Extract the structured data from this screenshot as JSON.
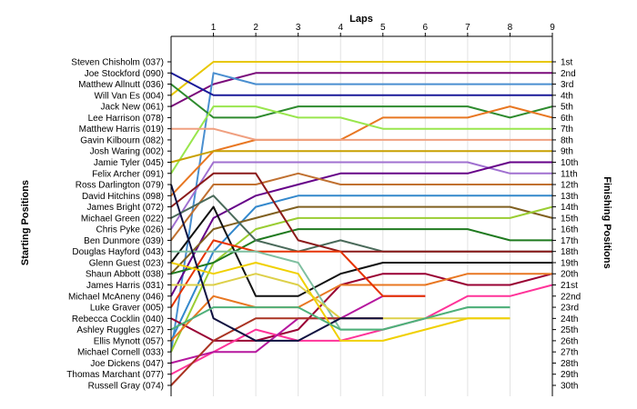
{
  "chart_data": {
    "type": "line",
    "title": "",
    "xlabel": "Laps",
    "ylabel_left": "Starting Positions",
    "ylabel_right": "Finishing Positions",
    "x": [
      0,
      1,
      2,
      3,
      4,
      5,
      6,
      7,
      8,
      9
    ],
    "x_tick_labels": [
      "1",
      "2",
      "3",
      "4",
      "5",
      "6",
      "7",
      "8",
      "9"
    ],
    "xlim": [
      0,
      9
    ],
    "ylim": [
      1,
      30
    ],
    "y_inverted": true,
    "grid": "vertical",
    "starting_labels": [
      "Steven Chisholm (037)",
      "Joe Stockford (090)",
      "Matthew Allnutt (036)",
      "Will Van Es (004)",
      "Jack New (061)",
      "Lee Harrison (078)",
      "Matthew Harris (019)",
      "Gavin Kilbourn (082)",
      "Josh Waring (002)",
      "Jamie Tyler (045)",
      "Felix Archer (091)",
      "Ross Darlington (079)",
      "David Hitchins (098)",
      "James Bright (072)",
      "Michael Green (022)",
      "Chris Pyke (026)",
      "Ben Dunmore (039)",
      "Douglas Hayford (043)",
      "Glenn Guest (023)",
      "Shaun Abbott (038)",
      "James Harris (031)",
      "Michael McAneny (046)",
      "Luke Graver (005)",
      "Rebecca Cocklin (040)",
      "Ashley Ruggles (027)",
      "Ellis Mynott (057)",
      "Michael Cornell (033)",
      "Joe Dickens (047)",
      "Thomas Marchant (077)",
      "Russell Gray (074)"
    ],
    "finishing_labels": [
      "1st",
      "2nd",
      "3rd",
      "4th",
      "5th",
      "6th",
      "7th",
      "8th",
      "9th",
      "10th",
      "11th",
      "12th",
      "13th",
      "14th",
      "15th",
      "16th",
      "17th",
      "18th",
      "19th",
      "20th",
      "21st",
      "22nd",
      "23rd",
      "24th",
      "25th",
      "26th",
      "27th",
      "28th",
      "29th",
      "30th"
    ],
    "series": [
      {
        "color": "#e8c700",
        "values": [
          4,
          1,
          1,
          1,
          1,
          1,
          1,
          1,
          1,
          1
        ]
      },
      {
        "color": "#7a0a7a",
        "values": [
          5,
          3,
          2,
          2,
          2,
          2,
          2,
          2,
          2,
          2
        ]
      },
      {
        "color": "#4a8fd0",
        "values": [
          27,
          2,
          3,
          3,
          3,
          3,
          3,
          3,
          3,
          3
        ]
      },
      {
        "color": "#1a1a99",
        "values": [
          2,
          4,
          4,
          4,
          4,
          4,
          4,
          4,
          4,
          4
        ]
      },
      {
        "color": "#2e8b2e",
        "values": [
          3,
          6,
          6,
          5,
          5,
          5,
          5,
          5,
          6,
          5
        ]
      },
      {
        "color": "#e87722",
        "values": [
          13,
          9,
          8,
          8,
          8,
          6,
          6,
          6,
          5,
          6
        ]
      },
      {
        "color": "#99e64d",
        "values": [
          11,
          5,
          5,
          6,
          6,
          7,
          7,
          7,
          7,
          7
        ]
      },
      {
        "color": "#f0a080",
        "values": [
          7,
          7,
          8,
          8,
          8,
          8,
          8,
          8,
          8,
          8
        ]
      },
      {
        "color": "#c8a000",
        "values": [
          10,
          9,
          9,
          9,
          9,
          9,
          9,
          9,
          9,
          9
        ]
      },
      {
        "color": "#a070d0",
        "values": [
          16,
          10,
          10,
          10,
          10,
          10,
          10,
          10,
          11,
          11
        ]
      },
      {
        "color": "#660088",
        "values": [
          22,
          15,
          13,
          12,
          11,
          11,
          11,
          11,
          10,
          10
        ]
      },
      {
        "color": "#c07030",
        "values": [
          17,
          12,
          12,
          11,
          12,
          12,
          12,
          12,
          12,
          12
        ]
      },
      {
        "color": "#3388cc",
        "values": [
          26,
          18,
          14,
          13,
          13,
          13,
          13,
          13,
          13,
          13
        ]
      },
      {
        "color": "#806020",
        "values": [
          20,
          16,
          15,
          14,
          14,
          14,
          14,
          14,
          14,
          15
        ]
      },
      {
        "color": "#9acd32",
        "values": [
          27,
          19,
          16,
          15,
          15,
          15,
          15,
          15,
          15,
          14
        ]
      },
      {
        "color": "#1f7a1f",
        "values": [
          20,
          19,
          17,
          16,
          16,
          16,
          16,
          16,
          17,
          17
        ]
      },
      {
        "color": "#4a6a5a",
        "values": [
          15,
          13,
          17,
          18,
          17,
          18,
          18,
          18,
          18,
          18
        ]
      },
      {
        "color": "#8b1a1a",
        "values": [
          14,
          11,
          11,
          17,
          18,
          18,
          18,
          18,
          18,
          18
        ]
      },
      {
        "color": "#111111",
        "values": [
          19,
          14,
          22,
          22,
          20,
          19,
          19,
          19,
          19,
          19
        ]
      },
      {
        "color": "#990033",
        "values": [
          24,
          26,
          26,
          25,
          21,
          20,
          20,
          21,
          21,
          20
        ]
      },
      {
        "color": "#e87722",
        "values": [
          26,
          22,
          23,
          23,
          21,
          21,
          21,
          20,
          20,
          20
        ]
      },
      {
        "color": "#ff3399",
        "values": [
          29,
          27,
          25,
          26,
          26,
          25,
          24,
          22,
          22,
          21
        ]
      },
      {
        "color": "#b5179e",
        "values": [
          28,
          27,
          27,
          24,
          24,
          22,
          22,
          null,
          null,
          null
        ]
      },
      {
        "color": "#e63300",
        "values": [
          23,
          17,
          18,
          18,
          18,
          22,
          22,
          null,
          null,
          null
        ]
      },
      {
        "color": "#7fbfa0",
        "values": [
          18,
          18,
          18,
          19,
          25,
          25,
          24,
          23,
          23,
          null
        ]
      },
      {
        "color": "#ddd04a",
        "values": [
          21,
          21,
          20,
          21,
          24,
          24,
          24,
          24,
          24,
          null
        ]
      },
      {
        "color": "#aa3322",
        "values": [
          30,
          26,
          24,
          24,
          24,
          24,
          null,
          null,
          null,
          null
        ]
      },
      {
        "color": "#0e1040",
        "values": [
          12,
          24,
          26,
          26,
          24,
          24,
          null,
          null,
          null,
          null
        ]
      },
      {
        "color": "#f0d000",
        "values": [
          19,
          20,
          19,
          20,
          26,
          26,
          25,
          24,
          24,
          null
        ]
      },
      {
        "color": "#4fb07a",
        "values": [
          25,
          23,
          23,
          23,
          25,
          25,
          24,
          23,
          23,
          null
        ]
      }
    ]
  }
}
